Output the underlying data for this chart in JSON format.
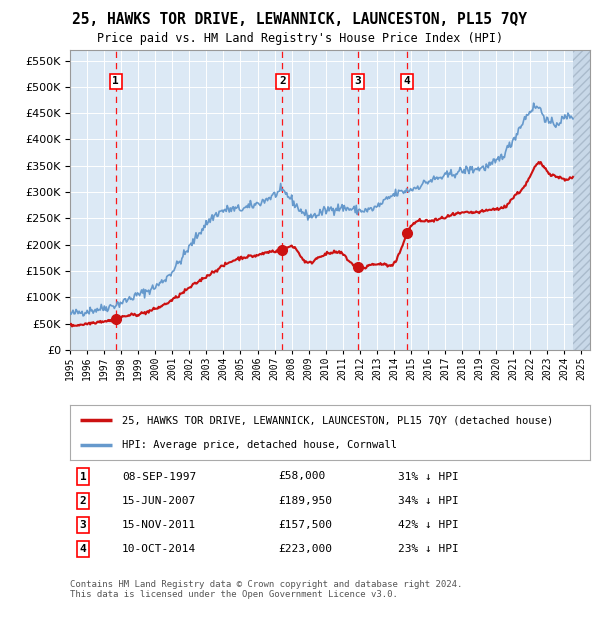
{
  "title": "25, HAWKS TOR DRIVE, LEWANNICK, LAUNCESTON, PL15 7QY",
  "subtitle": "Price paid vs. HM Land Registry's House Price Index (HPI)",
  "background_color": "#ffffff",
  "plot_bg_color": "#dce9f5",
  "hpi_color": "#6699cc",
  "price_color": "#cc1111",
  "marker_color": "#cc1111",
  "transactions": [
    {
      "num": 1,
      "date": "08-SEP-1997",
      "year": 1997.69,
      "price": 58000,
      "pct": "31%",
      "dir": "↓"
    },
    {
      "num": 2,
      "date": "15-JUN-2007",
      "year": 2007.46,
      "price": 189950,
      "pct": "34%",
      "dir": "↓"
    },
    {
      "num": 3,
      "date": "15-NOV-2011",
      "year": 2011.88,
      "price": 157500,
      "pct": "42%",
      "dir": "↓"
    },
    {
      "num": 4,
      "date": "10-OCT-2014",
      "year": 2014.78,
      "price": 223000,
      "pct": "23%",
      "dir": "↓"
    }
  ],
  "legend_property": "25, HAWKS TOR DRIVE, LEWANNICK, LAUNCESTON, PL15 7QY (detached house)",
  "legend_hpi": "HPI: Average price, detached house, Cornwall",
  "footer_line1": "Contains HM Land Registry data © Crown copyright and database right 2024.",
  "footer_line2": "This data is licensed under the Open Government Licence v3.0.",
  "ylim": [
    0,
    570000
  ],
  "yticks": [
    0,
    50000,
    100000,
    150000,
    200000,
    250000,
    300000,
    350000,
    400000,
    450000,
    500000,
    550000
  ],
  "xlim_start": 1995.0,
  "xlim_end": 2025.5
}
